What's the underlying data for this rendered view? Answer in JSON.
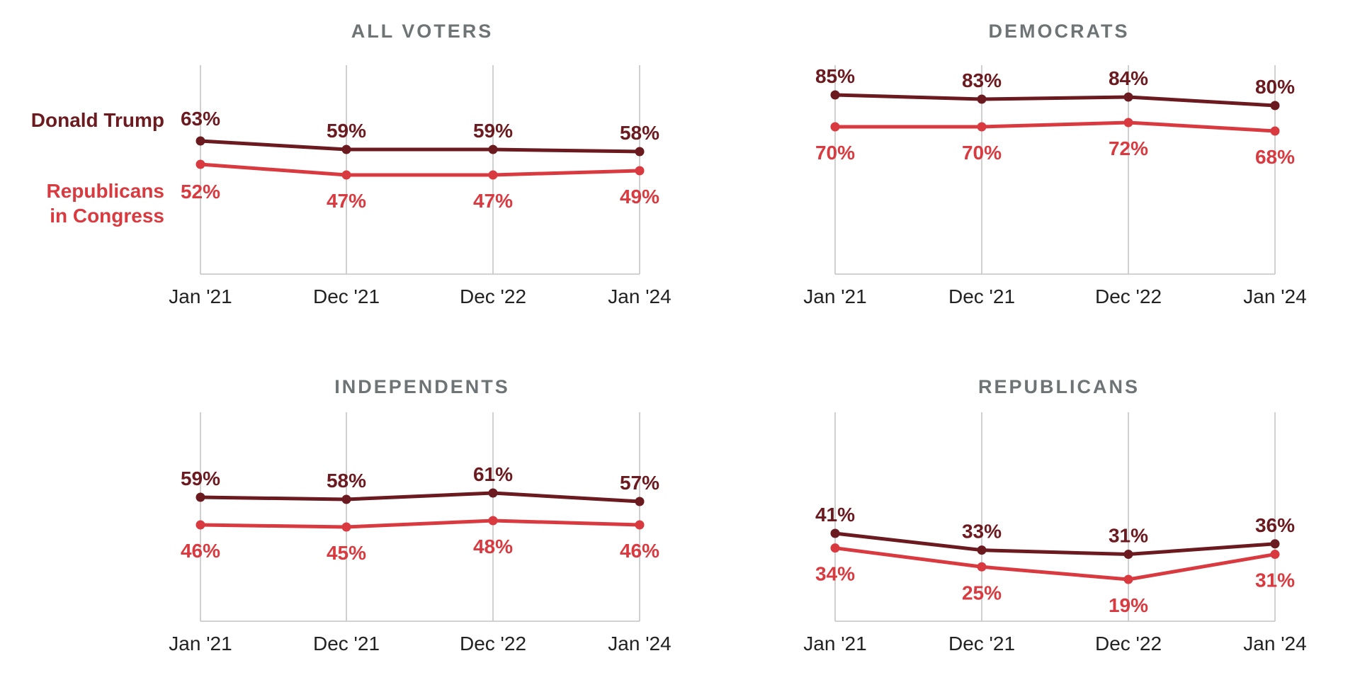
{
  "colors": {
    "trump": "#6b1a1f",
    "congress": "#d93a40",
    "title": "#6e7475",
    "grid": "#c4c4c4",
    "tick": "#222222"
  },
  "legend": {
    "trump": "Donald Trump",
    "congress_line1": "Republicans",
    "congress_line2": "in Congress"
  },
  "chart_data": [
    {
      "type": "line",
      "title": "ALL VOTERS",
      "categories": [
        "Jan '21",
        "Dec '21",
        "Dec '22",
        "Jan '24"
      ],
      "ylim": [
        20,
        80
      ],
      "series": [
        {
          "name": "Donald Trump",
          "values": [
            63,
            59,
            59,
            58
          ],
          "labels": [
            "63%",
            "59%",
            "59%",
            "58%"
          ]
        },
        {
          "name": "Republicans in Congress",
          "values": [
            52,
            47,
            47,
            49
          ],
          "labels": [
            "52%",
            "47%",
            "47%",
            "49%"
          ]
        }
      ]
    },
    {
      "type": "line",
      "title": "DEMOCRATS",
      "categories": [
        "Jan '21",
        "Dec '21",
        "Dec '22",
        "Jan '24"
      ],
      "ylim": [
        40,
        90
      ],
      "series": [
        {
          "name": "Donald Trump",
          "values": [
            85,
            83,
            84,
            80
          ],
          "labels": [
            "85%",
            "83%",
            "84%",
            "80%"
          ]
        },
        {
          "name": "Republicans in Congress",
          "values": [
            70,
            70,
            72,
            68
          ],
          "labels": [
            "70%",
            "70%",
            "72%",
            "68%"
          ]
        }
      ]
    },
    {
      "type": "line",
      "title": "INDEPENDENTS",
      "categories": [
        "Jan '21",
        "Dec '21",
        "Dec '22",
        "Jan '24"
      ],
      "ylim": [
        20,
        80
      ],
      "series": [
        {
          "name": "Donald Trump",
          "values": [
            59,
            58,
            61,
            57
          ],
          "labels": [
            "59%",
            "58%",
            "61%",
            "57%"
          ]
        },
        {
          "name": "Republicans in Congress",
          "values": [
            46,
            45,
            48,
            46
          ],
          "labels": [
            "46%",
            "45%",
            "48%",
            "46%"
          ]
        }
      ]
    },
    {
      "type": "line",
      "title": "REPUBLICANS",
      "categories": [
        "Jan '21",
        "Dec '21",
        "Dec '22",
        "Jan '24"
      ],
      "ylim": [
        0,
        60
      ],
      "series": [
        {
          "name": "Donald Trump",
          "values": [
            41,
            33,
            31,
            36
          ],
          "labels": [
            "41%",
            "33%",
            "31%",
            "36%"
          ]
        },
        {
          "name": "Republicans in Congress",
          "values": [
            34,
            25,
            19,
            31
          ],
          "labels": [
            "34%",
            "25%",
            "19%",
            "31%"
          ]
        }
      ]
    }
  ]
}
